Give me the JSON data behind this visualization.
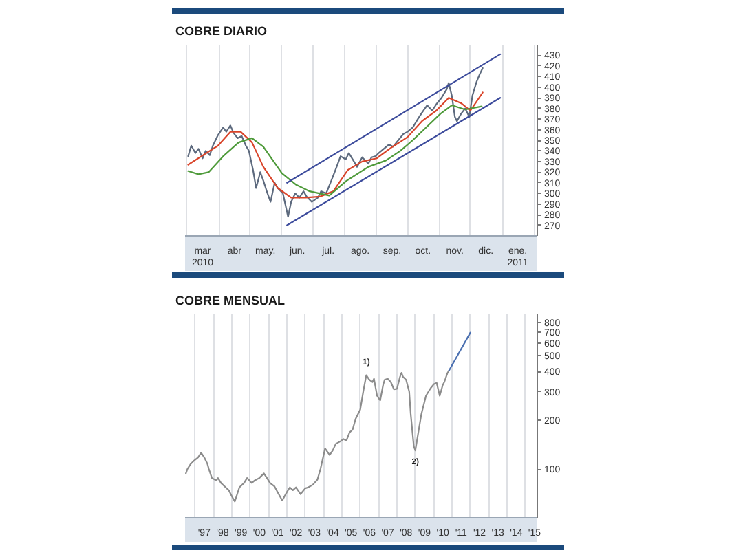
{
  "chart_data": [
    {
      "type": "line",
      "title": "COBRE DIARIO",
      "xlim": [
        "2010-02-27",
        "2011-02-04"
      ],
      "ylim": [
        260,
        440
      ],
      "xticks": [
        {
          "value": "2010-03-01",
          "label": null
        },
        {
          "value": "2010-03-16",
          "label": "mar\n2010"
        },
        {
          "value": "2010-04-01",
          "label": null
        },
        {
          "value": "2010-04-16",
          "label": "abr"
        },
        {
          "value": "2010-05-01",
          "label": null
        },
        {
          "value": "2010-05-16",
          "label": "may."
        },
        {
          "value": "2010-06-01",
          "label": null
        },
        {
          "value": "2010-06-16",
          "label": "jun."
        },
        {
          "value": "2010-07-01",
          "label": null
        },
        {
          "value": "2010-07-16",
          "label": "jul."
        },
        {
          "value": "2010-08-01",
          "label": null
        },
        {
          "value": "2010-08-16",
          "label": "ago."
        },
        {
          "value": "2010-09-01",
          "label": null
        },
        {
          "value": "2010-09-16",
          "label": "sep."
        },
        {
          "value": "2010-10-01",
          "label": null
        },
        {
          "value": "2010-10-16",
          "label": "oct."
        },
        {
          "value": "2010-11-01",
          "label": null
        },
        {
          "value": "2010-11-16",
          "label": "nov."
        },
        {
          "value": "2010-12-01",
          "label": null
        },
        {
          "value": "2010-12-16",
          "label": "dic."
        },
        {
          "value": "2011-01-01",
          "label": null
        },
        {
          "value": "2011-01-16",
          "label": "ene.\n2011"
        },
        {
          "value": "2011-02-01",
          "label": null
        }
      ],
      "yticks": [
        270,
        280,
        290,
        300,
        310,
        320,
        330,
        340,
        350,
        360,
        370,
        380,
        390,
        400,
        410,
        420,
        430
      ],
      "grid": "x",
      "series": [
        {
          "color": "#5d6a7e",
          "x": [
            "2010-03-02",
            "2010-03-05",
            "2010-03-09",
            "2010-03-12",
            "2010-03-16",
            "2010-03-19",
            "2010-03-23",
            "2010-03-26",
            "2010-03-31",
            "2010-04-05",
            "2010-04-08",
            "2010-04-12",
            "2010-04-15",
            "2010-04-19",
            "2010-04-23",
            "2010-04-27",
            "2010-04-30",
            "2010-05-04",
            "2010-05-07",
            "2010-05-11",
            "2010-05-14",
            "2010-05-18",
            "2010-05-21",
            "2010-05-25",
            "2010-05-28",
            "2010-06-02",
            "2010-06-07",
            "2010-06-10",
            "2010-06-14",
            "2010-06-18",
            "2010-06-22",
            "2010-06-25",
            "2010-06-30",
            "2010-07-06",
            "2010-07-09",
            "2010-07-14",
            "2010-07-19",
            "2010-07-23",
            "2010-07-28",
            "2010-08-02",
            "2010-08-05",
            "2010-08-10",
            "2010-08-13",
            "2010-08-18",
            "2010-08-24",
            "2010-08-27",
            "2010-08-31",
            "2010-09-03",
            "2010-09-08",
            "2010-09-13",
            "2010-09-17",
            "2010-09-22",
            "2010-09-27",
            "2010-10-01",
            "2010-10-06",
            "2010-10-11",
            "2010-10-15",
            "2010-10-20",
            "2010-10-25",
            "2010-10-29",
            "2010-11-03",
            "2010-11-08",
            "2010-11-10",
            "2010-11-13",
            "2010-11-16",
            "2010-11-18",
            "2010-11-22",
            "2010-11-26",
            "2010-11-30",
            "2010-12-03",
            "2010-12-07",
            "2010-12-10",
            "2010-12-13"
          ],
          "values": [
            335,
            345,
            338,
            342,
            333,
            340,
            336,
            345,
            355,
            362,
            358,
            364,
            357,
            352,
            354,
            345,
            340,
            322,
            305,
            320,
            312,
            300,
            292,
            310,
            305,
            300,
            278,
            292,
            300,
            296,
            302,
            297,
            292,
            296,
            302,
            300,
            312,
            322,
            335,
            332,
            338,
            330,
            325,
            334,
            328,
            334,
            335,
            338,
            342,
            346,
            344,
            350,
            356,
            358,
            362,
            370,
            376,
            383,
            378,
            384,
            390,
            398,
            404,
            392,
            372,
            368,
            375,
            380,
            372,
            392,
            405,
            412,
            418
          ]
        },
        {
          "color": "#d9442a",
          "x": [
            "2010-03-02",
            "2010-03-15",
            "2010-03-31",
            "2010-04-12",
            "2010-04-22",
            "2010-05-03",
            "2010-05-14",
            "2010-05-28",
            "2010-06-10",
            "2010-06-24",
            "2010-07-08",
            "2010-07-21",
            "2010-08-04",
            "2010-08-18",
            "2010-09-01",
            "2010-09-15",
            "2010-10-01",
            "2010-10-15",
            "2010-10-29",
            "2010-11-10",
            "2010-11-22",
            "2010-12-01",
            "2010-12-13"
          ],
          "values": [
            327,
            335,
            345,
            358,
            358,
            348,
            325,
            305,
            296,
            296,
            297,
            302,
            322,
            330,
            333,
            343,
            353,
            368,
            378,
            390,
            385,
            378,
            395
          ]
        },
        {
          "color": "#4e9a3a",
          "x": [
            "2010-03-02",
            "2010-03-12",
            "2010-03-22",
            "2010-04-05",
            "2010-04-20",
            "2010-05-03",
            "2010-05-14",
            "2010-06-01",
            "2010-06-15",
            "2010-06-28",
            "2010-07-17",
            "2010-08-03",
            "2010-08-24",
            "2010-09-10",
            "2010-09-24",
            "2010-10-06",
            "2010-10-20",
            "2010-11-02",
            "2010-11-13",
            "2010-11-26",
            "2010-12-12"
          ],
          "values": [
            321,
            318,
            320,
            335,
            348,
            352,
            344,
            319,
            308,
            302,
            298,
            312,
            325,
            331,
            340,
            350,
            363,
            375,
            383,
            379,
            382
          ]
        },
        {
          "color": "#3c4b9c",
          "x": [
            "2010-06-06",
            "2010-12-30"
          ],
          "values": [
            310,
            431
          ]
        },
        {
          "color": "#3c4b9c",
          "x": [
            "2010-06-06",
            "2010-12-30"
          ],
          "values": [
            270,
            390
          ]
        }
      ]
    },
    {
      "type": "line",
      "title": "COBRE MENSUAL",
      "log": true,
      "xlim": [
        "1996-06-15",
        "2015-08-25"
      ],
      "ylim": [
        50,
        900
      ],
      "xticks": [
        {
          "value": "1997",
          "label": null
        },
        {
          "value": "1997-07",
          "label": "'97"
        },
        {
          "value": "1998",
          "label": null
        },
        {
          "value": "1998-07",
          "label": "'98"
        },
        {
          "value": "1999",
          "label": null
        },
        {
          "value": "1999-07",
          "label": "'99"
        },
        {
          "value": "2000",
          "label": null
        },
        {
          "value": "2000-07",
          "label": "'00"
        },
        {
          "value": "2001",
          "label": null
        },
        {
          "value": "2001-07",
          "label": "'01"
        },
        {
          "value": "2002",
          "label": null
        },
        {
          "value": "2002-07",
          "label": "'02"
        },
        {
          "value": "2003",
          "label": null
        },
        {
          "value": "2003-07",
          "label": "'03"
        },
        {
          "value": "2004",
          "label": null
        },
        {
          "value": "2004-07",
          "label": "'04"
        },
        {
          "value": "2005",
          "label": null
        },
        {
          "value": "2005-07",
          "label": "'05"
        },
        {
          "value": "2006",
          "label": null
        },
        {
          "value": "2006-07",
          "label": "'06"
        },
        {
          "value": "2007",
          "label": null
        },
        {
          "value": "2007-07",
          "label": "'07"
        },
        {
          "value": "2008",
          "label": null
        },
        {
          "value": "2008-07",
          "label": "'08"
        },
        {
          "value": "2009",
          "label": null
        },
        {
          "value": "2009-07",
          "label": "'09"
        },
        {
          "value": "2010",
          "label": null
        },
        {
          "value": "2010-07",
          "label": "'10"
        },
        {
          "value": "2011",
          "label": null
        },
        {
          "value": "2011-07",
          "label": "'11"
        },
        {
          "value": "2012",
          "label": null
        },
        {
          "value": "2012-07",
          "label": "'12"
        },
        {
          "value": "2013",
          "label": null
        },
        {
          "value": "2013-07",
          "label": "'13"
        },
        {
          "value": "2014",
          "label": null
        },
        {
          "value": "2014-07",
          "label": "'14"
        },
        {
          "value": "2015",
          "label": null
        },
        {
          "value": "2015-07",
          "label": "'15"
        }
      ],
      "yticks": [
        100,
        200,
        300,
        400,
        500,
        600,
        700,
        800
      ],
      "grid": "x",
      "annotations": [
        {
          "text": "1)",
          "x": "2006-05",
          "y": 379
        },
        {
          "text": "2)",
          "x": "2009-01",
          "y": 130
        }
      ],
      "series": [
        {
          "color": "#8c8c8c",
          "x": [
            "1996-07",
            "1996-08",
            "1996-10",
            "1996-12",
            "1997-03",
            "1997-05",
            "1997-07",
            "1997-09",
            "1997-10",
            "1997-12",
            "1998-03",
            "1998-04",
            "1998-06",
            "1998-09",
            "1998-11",
            "1999-01",
            "1999-03",
            "1999-06",
            "1999-09",
            "1999-11",
            "2000-02",
            "2000-04",
            "2000-07",
            "2000-10",
            "2000-12",
            "2001-02",
            "2001-05",
            "2001-07",
            "2001-10",
            "2002-01",
            "2002-03",
            "2002-05",
            "2002-07",
            "2002-10",
            "2003-01",
            "2003-03",
            "2003-06",
            "2003-09",
            "2003-11",
            "2004-02",
            "2004-05",
            "2004-07",
            "2004-09",
            "2004-12",
            "2005-02",
            "2005-04",
            "2005-06",
            "2005-08",
            "2005-10",
            "2006-01",
            "2006-03",
            "2006-05",
            "2006-07",
            "2006-09",
            "2006-10",
            "2006-12",
            "2007-02",
            "2007-04",
            "2007-05",
            "2007-07",
            "2007-09",
            "2007-11",
            "2008-01",
            "2008-03",
            "2008-04",
            "2008-05",
            "2008-07",
            "2008-09",
            "2008-10",
            "2008-12",
            "2009-01",
            "2009-03",
            "2009-05",
            "2009-08",
            "2009-11",
            "2010-01",
            "2010-03",
            "2010-05",
            "2010-07",
            "2010-08",
            "2010-10",
            "2010-11"
          ],
          "values": [
            94,
            100,
            107,
            112,
            118,
            126,
            118,
            108,
            100,
            88,
            85,
            88,
            82,
            77,
            74,
            68,
            63,
            77,
            82,
            88,
            82,
            85,
            88,
            94,
            88,
            82,
            78,
            72,
            64,
            72,
            77,
            74,
            77,
            70,
            76,
            77,
            80,
            86,
            100,
            134,
            122,
            130,
            143,
            148,
            153,
            150,
            168,
            175,
            204,
            233,
            300,
            379,
            355,
            344,
            360,
            283,
            265,
            330,
            355,
            360,
            344,
            310,
            312,
            370,
            392,
            370,
            355,
            300,
            218,
            138,
            130,
            168,
            218,
            283,
            315,
            333,
            340,
            283,
            330,
            344,
            390,
            404
          ]
        },
        {
          "color": "#4a6fb0",
          "x": [
            "2010-11",
            "2012-01"
          ],
          "values": [
            404,
            694
          ]
        }
      ]
    }
  ]
}
